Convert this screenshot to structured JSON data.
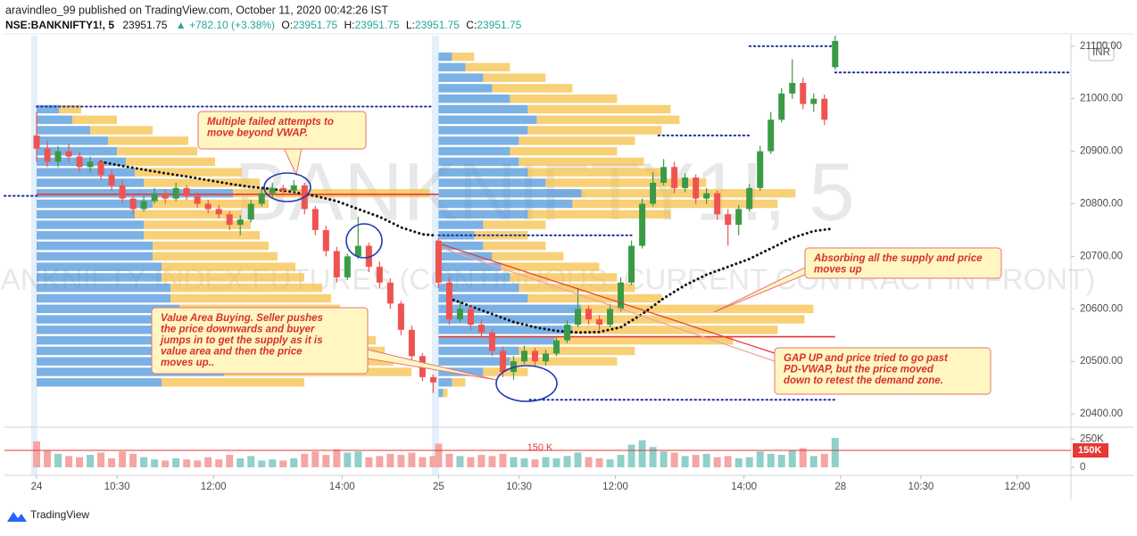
{
  "header": {
    "byline": "aravindleo_99 published on TradingView.com, October 11, 2020 00:42:26 IST",
    "symbol": "NSE:BANKNIFTY1!, 5",
    "last": "23951.75",
    "change": "▲ +782.10 (+3.38%)",
    "ohlc": [
      {
        "label": "O:",
        "value": "23951.75"
      },
      {
        "label": "H:",
        "value": "23951.75"
      },
      {
        "label": "L:",
        "value": "23951.75"
      },
      {
        "label": "C:",
        "value": "23951.75"
      }
    ]
  },
  "footer": {
    "brand": "TradingView"
  },
  "chart_data": {
    "type": "candlestick",
    "watermark": {
      "symbol": "BANKNIFTY1!, 5",
      "description": "BANKNIFTY INDEX FUTURES (CONTINUOUS: CURRENT CONTRACT IN FRONT)"
    },
    "currency": "INR",
    "xlim": [
      -6,
      193
    ],
    "xticks": [
      {
        "value": 0,
        "label": "24"
      },
      {
        "value": 15,
        "label": "10:30"
      },
      {
        "value": 33,
        "label": "12:00"
      },
      {
        "value": 57,
        "label": "14:00"
      },
      {
        "value": 75,
        "label": "25"
      },
      {
        "value": 90,
        "label": "10:30"
      },
      {
        "value": 108,
        "label": "12:00"
      },
      {
        "value": 132,
        "label": "14:00"
      },
      {
        "value": 150,
        "label": "28"
      },
      {
        "value": 165,
        "label": "10:30"
      },
      {
        "value": 183,
        "label": "12:00"
      }
    ],
    "ylim": [
      20390,
      21120
    ],
    "yticks": [
      {
        "value": 20400,
        "label": "20400.00"
      },
      {
        "value": 20500,
        "label": "20500.00"
      },
      {
        "value": 20600,
        "label": "20600.00"
      },
      {
        "value": 20700,
        "label": "20700.00"
      },
      {
        "value": 20800,
        "label": "20800.00"
      },
      {
        "value": 20900,
        "label": "20900.00"
      },
      {
        "value": 21000,
        "label": "21000.00"
      },
      {
        "value": 21100,
        "label": "21100.00"
      }
    ],
    "grid": false,
    "up_color": "#3b9a46",
    "down_color": "#ef5350",
    "x": [
      0,
      2,
      4,
      6,
      8,
      10,
      12,
      14,
      16,
      18,
      20,
      22,
      24,
      26,
      28,
      30,
      32,
      34,
      36,
      38,
      40,
      42,
      44,
      46,
      48,
      50,
      52,
      54,
      56,
      58,
      60,
      62,
      64,
      66,
      68,
      70,
      72,
      74,
      75,
      77,
      79,
      81,
      83,
      85,
      87,
      89,
      91,
      93,
      95,
      97,
      99,
      101,
      103,
      105,
      107,
      109,
      111,
      113,
      115,
      117,
      119,
      121,
      123,
      125,
      127,
      129,
      131,
      133,
      135,
      137,
      139,
      141,
      143,
      145,
      147,
      149
    ],
    "candles": [
      [
        20930,
        20975,
        20880,
        20905
      ],
      [
        20905,
        20920,
        20870,
        20880
      ],
      [
        20880,
        20910,
        20870,
        20900
      ],
      [
        20900,
        20915,
        20880,
        20890
      ],
      [
        20890,
        20900,
        20860,
        20870
      ],
      [
        20870,
        20890,
        20860,
        20880
      ],
      [
        20880,
        20885,
        20845,
        20855
      ],
      [
        20855,
        20865,
        20825,
        20835
      ],
      [
        20835,
        20845,
        20800,
        20810
      ],
      [
        20810,
        20820,
        20780,
        20790
      ],
      [
        20790,
        20815,
        20785,
        20805
      ],
      [
        20805,
        20830,
        20800,
        20820
      ],
      [
        20820,
        20828,
        20800,
        20810
      ],
      [
        20810,
        20840,
        20805,
        20830
      ],
      [
        20830,
        20835,
        20808,
        20815
      ],
      [
        20815,
        20822,
        20792,
        20800
      ],
      [
        20800,
        20808,
        20782,
        20790
      ],
      [
        20790,
        20798,
        20772,
        20780
      ],
      [
        20780,
        20786,
        20750,
        20760
      ],
      [
        20760,
        20778,
        20740,
        20770
      ],
      [
        20770,
        20808,
        20765,
        20800
      ],
      [
        20800,
        20828,
        20795,
        20820
      ],
      [
        20820,
        20840,
        20812,
        20830
      ],
      [
        20830,
        20836,
        20815,
        20825
      ],
      [
        20825,
        20845,
        20818,
        20835
      ],
      [
        20835,
        20840,
        20780,
        20790
      ],
      [
        20790,
        20796,
        20740,
        20750
      ],
      [
        20750,
        20758,
        20700,
        20710
      ],
      [
        20710,
        20718,
        20650,
        20660
      ],
      [
        20660,
        20705,
        20655,
        20700
      ],
      [
        20700,
        20775,
        20695,
        20720
      ],
      [
        20720,
        20726,
        20670,
        20680
      ],
      [
        20680,
        20690,
        20640,
        20650
      ],
      [
        20650,
        20658,
        20600,
        20610
      ],
      [
        20610,
        20615,
        20550,
        20560
      ],
      [
        20560,
        20568,
        20500,
        20510
      ],
      [
        20510,
        20516,
        20462,
        20470
      ],
      [
        20470,
        20475,
        20440,
        20460
      ],
      [
        20730,
        20735,
        20640,
        20650
      ],
      [
        20650,
        20660,
        20570,
        20580
      ],
      [
        20580,
        20615,
        20575,
        20600
      ],
      [
        20600,
        20608,
        20560,
        20570
      ],
      [
        20570,
        20580,
        20545,
        20555
      ],
      [
        20555,
        20560,
        20510,
        20520
      ],
      [
        20520,
        20528,
        20470,
        20480
      ],
      [
        20480,
        20510,
        20465,
        20500
      ],
      [
        20500,
        20530,
        20495,
        20520
      ],
      [
        20520,
        20526,
        20490,
        20500
      ],
      [
        20500,
        20522,
        20492,
        20515
      ],
      [
        20515,
        20548,
        20510,
        20540
      ],
      [
        20540,
        20578,
        20535,
        20570
      ],
      [
        20570,
        20640,
        20565,
        20600
      ],
      [
        20600,
        20606,
        20570,
        20580
      ],
      [
        20580,
        20588,
        20560,
        20570
      ],
      [
        20570,
        20610,
        20565,
        20600
      ],
      [
        20600,
        20660,
        20595,
        20650
      ],
      [
        20650,
        20730,
        20645,
        20720
      ],
      [
        20720,
        20810,
        20715,
        20800
      ],
      [
        20800,
        20860,
        20795,
        20840
      ],
      [
        20840,
        20885,
        20835,
        20870
      ],
      [
        20870,
        20880,
        20820,
        20830
      ],
      [
        20830,
        20858,
        20822,
        20850
      ],
      [
        20850,
        20856,
        20800,
        20810
      ],
      [
        20810,
        20830,
        20800,
        20820
      ],
      [
        20820,
        20825,
        20770,
        20780
      ],
      [
        20780,
        20790,
        20720,
        20760
      ],
      [
        20760,
        20798,
        20740,
        20790
      ],
      [
        20790,
        20838,
        20785,
        20830
      ],
      [
        20830,
        20910,
        20825,
        20900
      ],
      [
        20900,
        20975,
        20895,
        20960
      ],
      [
        20960,
        21020,
        20955,
        21010
      ],
      [
        21010,
        21075,
        21000,
        21030
      ],
      [
        21030,
        21040,
        20980,
        20990
      ],
      [
        20990,
        21010,
        20975,
        21000
      ],
      [
        21000,
        21008,
        20950,
        20960
      ],
      [
        21060,
        21120,
        21055,
        21110
      ]
    ],
    "vwap": {
      "color": "#111111",
      "x": [
        12,
        16,
        20,
        24,
        28,
        32,
        36,
        40,
        44,
        48,
        52,
        56,
        60,
        64,
        68,
        72,
        74,
        75,
        77,
        81,
        85,
        89,
        93,
        97,
        101,
        105,
        109,
        113,
        117,
        121,
        125,
        129,
        133,
        137,
        141,
        145,
        148
      ],
      "values": [
        20880,
        20872,
        20865,
        20858,
        20852,
        20845,
        20838,
        20832,
        20828,
        20822,
        20815,
        20805,
        20790,
        20775,
        20755,
        20742,
        20740,
        null,
        20620,
        20605,
        20590,
        20575,
        20565,
        20558,
        20555,
        20556,
        20565,
        20590,
        20620,
        20645,
        20665,
        20680,
        20695,
        20715,
        20735,
        20748,
        20752
      ]
    },
    "hlines": [
      {
        "value": 20985,
        "x": [
          0,
          74
        ],
        "color": "#1f2f9e",
        "dash": true
      },
      {
        "value": 20818,
        "x": [
          0,
          75
        ],
        "color": "#e53935",
        "dash": false
      },
      {
        "value": 20815,
        "x": [
          -6,
          0
        ],
        "color": "#1f2f9e",
        "dash": true
      },
      {
        "value": 20740,
        "x": [
          75,
          111
        ],
        "color": "#1f2f9e",
        "dash": true
      },
      {
        "value": 20930,
        "x": [
          116,
          133
        ],
        "color": "#1f2f9e",
        "dash": true
      },
      {
        "value": 20547,
        "x": [
          75,
          149
        ],
        "color": "#e53935",
        "dash": false
      },
      {
        "value": 20427,
        "x": [
          92,
          149
        ],
        "color": "#1f2f9e",
        "dash": true
      },
      {
        "value": 21100,
        "x": [
          133,
          149
        ],
        "color": "#1f2f9e",
        "dash": true
      },
      {
        "value": 21050,
        "x": [
          149,
          193
        ],
        "color": "#1f2f9e",
        "dash": true
      }
    ],
    "profiles": [
      {
        "start": 0,
        "step": 20,
        "levels": [
          20460,
          20480,
          20500,
          20520,
          20540,
          20560,
          20580,
          20600,
          20620,
          20640,
          20660,
          20680,
          20700,
          20720,
          20740,
          20760,
          20780,
          20800,
          20820,
          20840,
          20860,
          20880,
          20900,
          20920,
          20940,
          20960,
          20980
        ],
        "up": [
          140,
          210,
          190,
          190,
          180,
          170,
          160,
          160,
          150,
          150,
          140,
          140,
          130,
          130,
          120,
          120,
          110,
          130,
          220,
          120,
          110,
          100,
          90,
          80,
          60,
          40,
          25
        ],
        "down": [
          160,
          210,
          210,
          200,
          200,
          200,
          190,
          180,
          180,
          170,
          160,
          150,
          140,
          130,
          130,
          120,
          120,
          130,
          220,
          130,
          120,
          100,
          90,
          90,
          70,
          50,
          25
        ]
      },
      {
        "start": 75,
        "step": 20,
        "levels": [
          20440,
          20460,
          20480,
          20500,
          20520,
          20540,
          20560,
          20580,
          20600,
          20620,
          20640,
          20660,
          20680,
          20700,
          20720,
          20740,
          20760,
          20780,
          20800,
          20820,
          20840,
          20860,
          20880,
          20900,
          20920,
          20940,
          20960,
          20980,
          21000,
          21020,
          21040,
          21060,
          21080
        ],
        "up": [
          5,
          15,
          50,
          80,
          90,
          130,
          150,
          160,
          160,
          100,
          90,
          80,
          70,
          60,
          50,
          40,
          50,
          100,
          150,
          160,
          120,
          100,
          90,
          80,
          90,
          100,
          110,
          100,
          80,
          60,
          50,
          30,
          15
        ],
        "down": [
          5,
          15,
          50,
          120,
          130,
          200,
          230,
          250,
          260,
          150,
          130,
          120,
          110,
          80,
          70,
          60,
          70,
          160,
          230,
          240,
          180,
          150,
          140,
          120,
          130,
          150,
          160,
          160,
          120,
          90,
          70,
          50,
          25
        ]
      }
    ],
    "profile_colors": {
      "up": "#4f97dc",
      "down": "#f5c04a"
    },
    "volume": {
      "ylim": [
        0,
        300000
      ],
      "yticks": [
        0,
        {
          "value": 250000,
          "label": "250K"
        }
      ],
      "up_color": "#8fd0c9",
      "down_color": "#f4a6a4",
      "ma": {
        "value": 150000,
        "label": "150 K",
        "axis_label": "150K",
        "color": "#e53935"
      },
      "values": [
        230000,
        150000,
        120000,
        100000,
        90000,
        110000,
        130000,
        80000,
        140000,
        120000,
        90000,
        70000,
        60000,
        80000,
        70000,
        60000,
        90000,
        70000,
        110000,
        80000,
        100000,
        60000,
        70000,
        60000,
        80000,
        120000,
        140000,
        110000,
        160000,
        130000,
        140000,
        90000,
        100000,
        120000,
        110000,
        130000,
        90000,
        100000,
        210000,
        120000,
        100000,
        90000,
        110000,
        100000,
        120000,
        90000,
        80000,
        70000,
        90000,
        80000,
        100000,
        130000,
        90000,
        80000,
        70000,
        110000,
        200000,
        240000,
        180000,
        140000,
        130000,
        100000,
        110000,
        120000,
        90000,
        100000,
        80000,
        90000,
        140000,
        120000,
        110000,
        150000,
        170000,
        100000,
        120000,
        260000
      ]
    },
    "annotations": [
      {
        "lines": [
          "Multiple failed attempts to",
          "move beyond VWAP."
        ]
      },
      {
        "lines": [
          "Value Area Buying. Seller pushes",
          "the price downwards and buyer",
          "jumps in to get the supply as it is",
          "value area and then the price",
          "moves up.."
        ]
      },
      {
        "lines": [
          "Absorbing all the supply and price",
          "moves up"
        ]
      },
      {
        "lines": [
          "GAP UP and price tried to go past",
          "PD-VWAP, but the price moved",
          "down to retest the demand zone."
        ]
      }
    ]
  }
}
